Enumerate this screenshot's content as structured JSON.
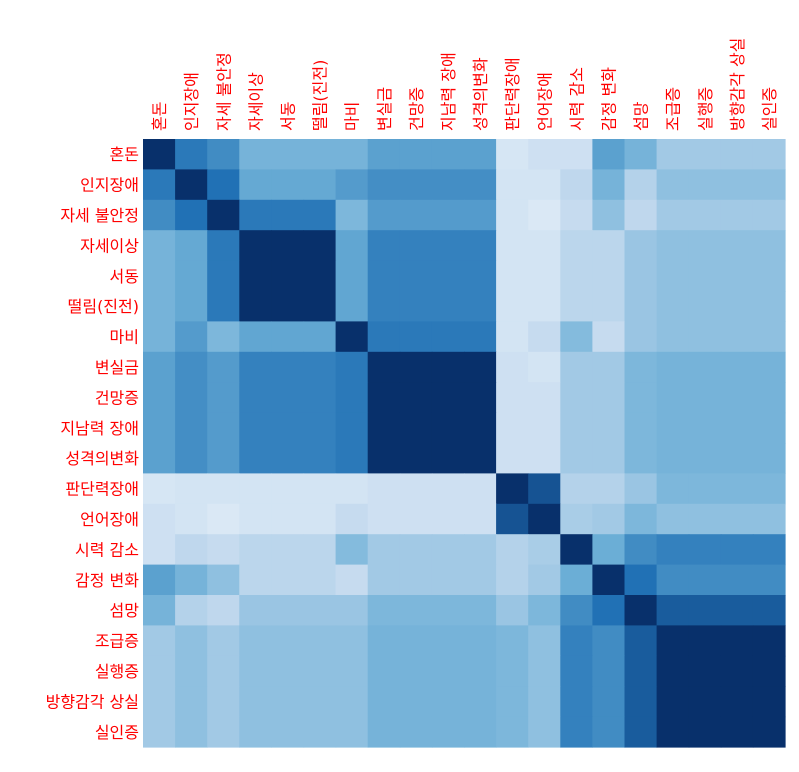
{
  "chart_data": {
    "type": "heatmap",
    "title": "",
    "xlabel": "",
    "ylabel": "",
    "labels": [
      "혼돈",
      "인지장애",
      "자세 불안정",
      "자세이상",
      "서동",
      "떨림(진전)",
      "마비",
      "변실금",
      "건망증",
      "지남력 장애",
      "성격의변화",
      "판단력장애",
      "언어장애",
      "시력 감소",
      "감정 변화",
      "섬망",
      "조급증",
      "실행증",
      "방향감각 상실",
      "실인증"
    ],
    "range": [
      0,
      1
    ],
    "colormap": {
      "low": "#f7fbff",
      "high": "#08306b"
    },
    "label_color": "#ff0000",
    "grid": false,
    "legend": "none",
    "matrix": [
      [
        1.0,
        0.75,
        0.68,
        0.52,
        0.52,
        0.52,
        0.52,
        0.6,
        0.6,
        0.6,
        0.6,
        0.2,
        0.25,
        0.25,
        0.6,
        0.52,
        0.4,
        0.4,
        0.4,
        0.4
      ],
      [
        0.75,
        1.0,
        0.78,
        0.57,
        0.57,
        0.57,
        0.62,
        0.67,
        0.67,
        0.67,
        0.67,
        0.22,
        0.22,
        0.32,
        0.52,
        0.35,
        0.45,
        0.45,
        0.45,
        0.45
      ],
      [
        0.68,
        0.78,
        1.0,
        0.75,
        0.75,
        0.75,
        0.5,
        0.62,
        0.62,
        0.62,
        0.62,
        0.22,
        0.18,
        0.3,
        0.45,
        0.32,
        0.4,
        0.4,
        0.4,
        0.4
      ],
      [
        0.52,
        0.57,
        0.75,
        1.0,
        1.0,
        1.0,
        0.58,
        0.72,
        0.72,
        0.72,
        0.72,
        0.22,
        0.22,
        0.33,
        0.33,
        0.42,
        0.45,
        0.45,
        0.45,
        0.45
      ],
      [
        0.52,
        0.57,
        0.75,
        1.0,
        1.0,
        1.0,
        0.58,
        0.72,
        0.72,
        0.72,
        0.72,
        0.22,
        0.22,
        0.33,
        0.33,
        0.42,
        0.45,
        0.45,
        0.45,
        0.45
      ],
      [
        0.52,
        0.57,
        0.75,
        1.0,
        1.0,
        1.0,
        0.58,
        0.72,
        0.72,
        0.72,
        0.72,
        0.22,
        0.22,
        0.33,
        0.33,
        0.42,
        0.45,
        0.45,
        0.45,
        0.45
      ],
      [
        0.52,
        0.62,
        0.5,
        0.58,
        0.58,
        0.58,
        1.0,
        0.75,
        0.75,
        0.75,
        0.75,
        0.22,
        0.3,
        0.48,
        0.3,
        0.42,
        0.45,
        0.45,
        0.45,
        0.45
      ],
      [
        0.6,
        0.67,
        0.62,
        0.72,
        0.72,
        0.72,
        0.75,
        1.0,
        1.0,
        1.0,
        1.0,
        0.25,
        0.22,
        0.4,
        0.4,
        0.5,
        0.52,
        0.52,
        0.52,
        0.52
      ],
      [
        0.6,
        0.67,
        0.62,
        0.72,
        0.72,
        0.72,
        0.75,
        1.0,
        1.0,
        1.0,
        1.0,
        0.25,
        0.25,
        0.4,
        0.4,
        0.5,
        0.52,
        0.52,
        0.52,
        0.52
      ],
      [
        0.6,
        0.67,
        0.62,
        0.72,
        0.72,
        0.72,
        0.75,
        1.0,
        1.0,
        1.0,
        1.0,
        0.25,
        0.25,
        0.4,
        0.4,
        0.5,
        0.52,
        0.52,
        0.52,
        0.52
      ],
      [
        0.6,
        0.67,
        0.62,
        0.72,
        0.72,
        0.72,
        0.75,
        1.0,
        1.0,
        1.0,
        1.0,
        0.25,
        0.25,
        0.4,
        0.4,
        0.5,
        0.52,
        0.52,
        0.52,
        0.52
      ],
      [
        0.2,
        0.22,
        0.22,
        0.22,
        0.22,
        0.22,
        0.22,
        0.25,
        0.25,
        0.25,
        0.25,
        1.0,
        0.88,
        0.35,
        0.35,
        0.42,
        0.5,
        0.5,
        0.5,
        0.5
      ],
      [
        0.25,
        0.22,
        0.18,
        0.22,
        0.22,
        0.22,
        0.3,
        0.25,
        0.25,
        0.25,
        0.25,
        0.88,
        1.0,
        0.38,
        0.4,
        0.5,
        0.45,
        0.45,
        0.45,
        0.45
      ],
      [
        0.25,
        0.32,
        0.3,
        0.33,
        0.33,
        0.33,
        0.48,
        0.4,
        0.4,
        0.4,
        0.4,
        0.35,
        0.38,
        1.0,
        0.55,
        0.68,
        0.72,
        0.72,
        0.72,
        0.72
      ],
      [
        0.6,
        0.52,
        0.45,
        0.33,
        0.33,
        0.33,
        0.3,
        0.4,
        0.4,
        0.4,
        0.4,
        0.35,
        0.4,
        0.55,
        1.0,
        0.78,
        0.68,
        0.68,
        0.68,
        0.68
      ],
      [
        0.52,
        0.35,
        0.32,
        0.42,
        0.42,
        0.42,
        0.42,
        0.5,
        0.5,
        0.5,
        0.5,
        0.42,
        0.5,
        0.68,
        0.78,
        1.0,
        0.85,
        0.85,
        0.85,
        0.85
      ],
      [
        0.4,
        0.45,
        0.4,
        0.45,
        0.45,
        0.45,
        0.45,
        0.52,
        0.52,
        0.52,
        0.52,
        0.5,
        0.45,
        0.72,
        0.68,
        0.85,
        1.0,
        1.0,
        1.0,
        1.0
      ],
      [
        0.4,
        0.45,
        0.4,
        0.45,
        0.45,
        0.45,
        0.45,
        0.52,
        0.52,
        0.52,
        0.52,
        0.5,
        0.45,
        0.72,
        0.68,
        0.85,
        1.0,
        1.0,
        1.0,
        1.0
      ],
      [
        0.4,
        0.45,
        0.4,
        0.45,
        0.45,
        0.45,
        0.45,
        0.52,
        0.52,
        0.52,
        0.52,
        0.5,
        0.45,
        0.72,
        0.68,
        0.85,
        1.0,
        1.0,
        1.0,
        1.0
      ],
      [
        0.4,
        0.45,
        0.4,
        0.45,
        0.45,
        0.45,
        0.45,
        0.52,
        0.52,
        0.52,
        0.52,
        0.5,
        0.45,
        0.72,
        0.68,
        0.85,
        1.0,
        1.0,
        1.0,
        1.0
      ]
    ]
  }
}
